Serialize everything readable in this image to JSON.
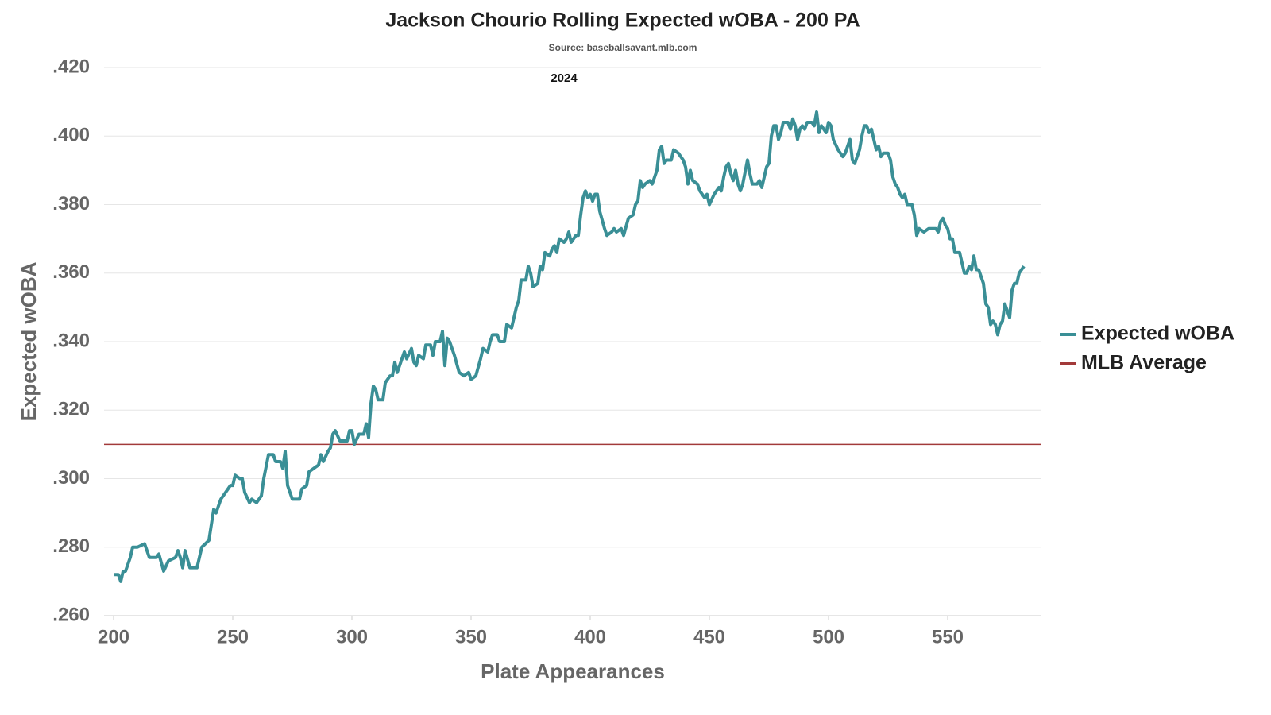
{
  "chart_data": {
    "type": "line",
    "title": "Jackson Chourio Rolling Expected wOBA - 200 PA",
    "subtitle": "Source: baseballsavant.mlb.com",
    "annotation": "2024",
    "xlabel": "Plate Appearances",
    "ylabel": "Expected wOBA",
    "x": [
      200,
      202,
      203,
      204,
      205,
      207,
      208,
      210,
      213,
      215,
      218,
      219,
      221,
      223,
      226,
      227,
      228,
      229,
      230,
      232,
      235,
      237,
      240,
      242,
      243,
      245,
      247,
      249,
      250,
      251,
      253,
      254,
      255,
      257,
      258,
      260,
      262,
      263,
      265,
      267,
      268,
      270,
      271,
      272,
      273,
      275,
      278,
      279,
      281,
      282,
      284,
      286,
      287,
      288,
      290,
      291,
      292,
      293,
      295,
      298,
      299,
      300,
      301,
      303,
      305,
      306,
      307,
      308,
      309,
      310,
      311,
      313,
      314,
      316,
      317,
      318,
      319,
      320,
      322,
      323,
      325,
      326,
      327,
      328,
      330,
      331,
      333,
      334,
      335,
      337,
      338,
      339,
      340,
      341,
      343,
      345,
      347,
      349,
      350,
      352,
      354,
      355,
      357,
      358,
      359,
      361,
      362,
      364,
      365,
      367,
      369,
      370,
      371,
      373,
      374,
      375,
      376,
      378,
      379,
      380,
      381,
      383,
      384,
      385,
      386,
      387,
      389,
      390,
      391,
      392,
      394,
      395,
      396,
      397,
      398,
      399,
      400,
      401,
      402,
      403,
      404,
      406,
      407,
      409,
      410,
      411,
      413,
      414,
      416,
      418,
      419,
      420,
      421,
      422,
      423,
      425,
      426,
      428,
      429,
      430,
      431,
      432,
      434,
      435,
      437,
      439,
      440,
      441,
      442,
      443,
      445,
      446,
      448,
      449,
      450,
      452,
      454,
      455,
      456,
      457,
      458,
      459,
      460,
      461,
      462,
      463,
      464,
      466,
      467,
      468,
      470,
      471,
      472,
      473,
      474,
      475,
      476,
      477,
      478,
      479,
      480,
      481,
      483,
      484,
      485,
      486,
      487,
      488,
      489,
      490,
      491,
      493,
      494,
      495,
      496,
      497,
      498,
      499,
      500,
      501,
      502,
      504,
      506,
      507,
      508,
      509,
      510,
      511,
      512,
      513,
      514,
      515,
      516,
      517,
      518,
      519,
      520,
      521,
      522,
      523,
      525,
      526,
      527,
      528,
      529,
      530,
      531,
      532,
      533,
      535,
      536,
      537,
      538,
      540,
      542,
      544,
      545,
      546,
      547,
      548,
      549,
      550,
      551,
      552,
      553,
      555,
      556,
      557,
      558,
      559,
      560,
      561,
      562,
      563,
      564,
      565,
      566,
      567,
      568,
      569,
      570,
      571,
      572,
      573,
      574,
      575,
      576,
      577,
      578,
      579,
      580,
      581,
      582
    ],
    "series": [
      {
        "name": "Expected wOBA",
        "color": "#3a8f96",
        "values": [
          0.272,
          0.272,
          0.27,
          0.273,
          0.273,
          0.277,
          0.28,
          0.28,
          0.281,
          0.277,
          0.277,
          0.278,
          0.273,
          0.276,
          0.277,
          0.279,
          0.277,
          0.274,
          0.279,
          0.274,
          0.274,
          0.28,
          0.282,
          0.291,
          0.29,
          0.294,
          0.296,
          0.298,
          0.298,
          0.301,
          0.3,
          0.3,
          0.296,
          0.293,
          0.294,
          0.293,
          0.295,
          0.3,
          0.307,
          0.307,
          0.305,
          0.305,
          0.303,
          0.308,
          0.298,
          0.294,
          0.294,
          0.297,
          0.298,
          0.302,
          0.303,
          0.304,
          0.307,
          0.305,
          0.308,
          0.309,
          0.313,
          0.314,
          0.311,
          0.311,
          0.314,
          0.314,
          0.31,
          0.313,
          0.313,
          0.316,
          0.312,
          0.322,
          0.327,
          0.326,
          0.323,
          0.323,
          0.328,
          0.33,
          0.33,
          0.334,
          0.331,
          0.333,
          0.337,
          0.335,
          0.338,
          0.334,
          0.333,
          0.336,
          0.335,
          0.339,
          0.339,
          0.336,
          0.34,
          0.34,
          0.343,
          0.333,
          0.341,
          0.34,
          0.336,
          0.331,
          0.33,
          0.331,
          0.329,
          0.33,
          0.335,
          0.338,
          0.337,
          0.34,
          0.342,
          0.342,
          0.34,
          0.34,
          0.345,
          0.344,
          0.35,
          0.352,
          0.358,
          0.358,
          0.362,
          0.36,
          0.356,
          0.357,
          0.362,
          0.361,
          0.366,
          0.365,
          0.367,
          0.368,
          0.366,
          0.37,
          0.369,
          0.37,
          0.372,
          0.369,
          0.371,
          0.371,
          0.377,
          0.382,
          0.384,
          0.382,
          0.383,
          0.381,
          0.383,
          0.383,
          0.378,
          0.373,
          0.371,
          0.372,
          0.373,
          0.372,
          0.373,
          0.371,
          0.376,
          0.377,
          0.38,
          0.381,
          0.387,
          0.385,
          0.386,
          0.387,
          0.386,
          0.39,
          0.396,
          0.397,
          0.392,
          0.393,
          0.393,
          0.396,
          0.395,
          0.393,
          0.391,
          0.386,
          0.39,
          0.387,
          0.386,
          0.384,
          0.382,
          0.383,
          0.38,
          0.383,
          0.385,
          0.384,
          0.388,
          0.391,
          0.392,
          0.389,
          0.387,
          0.39,
          0.386,
          0.384,
          0.386,
          0.393,
          0.389,
          0.386,
          0.386,
          0.387,
          0.385,
          0.388,
          0.391,
          0.392,
          0.4,
          0.403,
          0.403,
          0.399,
          0.401,
          0.404,
          0.404,
          0.402,
          0.405,
          0.403,
          0.399,
          0.402,
          0.403,
          0.402,
          0.404,
          0.404,
          0.403,
          0.407,
          0.401,
          0.403,
          0.402,
          0.401,
          0.404,
          0.403,
          0.399,
          0.396,
          0.394,
          0.395,
          0.397,
          0.399,
          0.393,
          0.392,
          0.394,
          0.396,
          0.4,
          0.403,
          0.403,
          0.401,
          0.402,
          0.399,
          0.396,
          0.397,
          0.394,
          0.395,
          0.395,
          0.393,
          0.388,
          0.386,
          0.385,
          0.383,
          0.382,
          0.383,
          0.38,
          0.38,
          0.377,
          0.371,
          0.373,
          0.372,
          0.373,
          0.373,
          0.373,
          0.372,
          0.375,
          0.376,
          0.374,
          0.373,
          0.37,
          0.37,
          0.366,
          0.366,
          0.363,
          0.36,
          0.36,
          0.362,
          0.361,
          0.365,
          0.361,
          0.361,
          0.359,
          0.357,
          0.351,
          0.35,
          0.345,
          0.346,
          0.345,
          0.342,
          0.345,
          0.346,
          0.351,
          0.349,
          0.347,
          0.355,
          0.357,
          0.357,
          0.36,
          0.361,
          0.362
        ]
      }
    ],
    "reference_line": {
      "name": "MLB Average",
      "value": 0.31,
      "color": "#a23a3a"
    },
    "xlim": [
      196,
      589
    ],
    "ylim": [
      0.26,
      0.42
    ],
    "xticks": [
      200,
      250,
      300,
      350,
      400,
      450,
      500,
      550
    ],
    "yticks": [
      {
        "value": 0.26,
        "label": ".260"
      },
      {
        "value": 0.28,
        "label": ".280"
      },
      {
        "value": 0.3,
        "label": ".300"
      },
      {
        "value": 0.32,
        "label": ".320"
      },
      {
        "value": 0.34,
        "label": ".340"
      },
      {
        "value": 0.36,
        "label": ".360"
      },
      {
        "value": 0.38,
        "label": ".380"
      },
      {
        "value": 0.4,
        "label": ".400"
      },
      {
        "value": 0.42,
        "label": ".420"
      }
    ],
    "grid": true,
    "legend": "right"
  }
}
